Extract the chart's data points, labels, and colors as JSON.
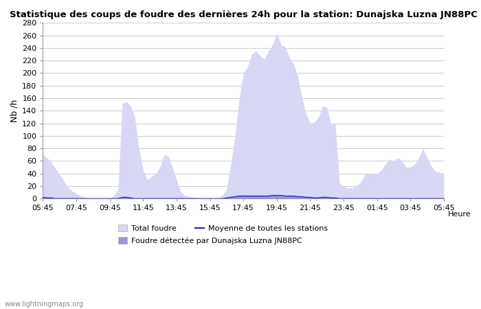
{
  "title": "Statistique des coups de foudre des dernières 24h pour la station: Dunajska Luzna JN88PC",
  "xlabel": "Heure",
  "ylabel": "Nb /h",
  "ylim": [
    0,
    280
  ],
  "yticks": [
    0,
    20,
    40,
    60,
    80,
    100,
    120,
    140,
    160,
    180,
    200,
    220,
    240,
    260,
    280
  ],
  "xtick_labels": [
    "05:45",
    "07:45",
    "09:45",
    "11:45",
    "13:45",
    "15:45",
    "17:45",
    "19:45",
    "21:45",
    "23:45",
    "01:45",
    "03:45",
    "05:45"
  ],
  "background_color": "#ffffff",
  "plot_bg_color": "#ffffff",
  "grid_color": "#cccccc",
  "fill_total_color": "#d8d8f4",
  "fill_detected_color": "#9898d8",
  "line_mean_color": "#2222cc",
  "watermark": "www.lightningmaps.org",
  "legend_total": "Total foudre",
  "legend_detected": "Foudre détectée par Dunajska Luzna JN88PC",
  "legend_mean": "Moyenne de toutes les stations",
  "n_points": 97,
  "total_foudre": [
    70,
    65,
    58,
    48,
    38,
    28,
    18,
    12,
    8,
    4,
    2,
    0,
    0,
    0,
    0,
    0,
    0,
    5,
    15,
    152,
    154,
    148,
    130,
    80,
    45,
    30,
    35,
    40,
    50,
    70,
    68,
    50,
    30,
    10,
    5,
    3,
    2,
    1,
    0,
    0,
    0,
    0,
    1,
    5,
    15,
    55,
    100,
    160,
    200,
    210,
    230,
    235,
    228,
    222,
    235,
    245,
    265,
    245,
    242,
    225,
    215,
    195,
    162,
    135,
    120,
    122,
    130,
    148,
    145,
    120,
    120,
    25,
    20,
    17,
    17,
    20,
    25,
    38,
    40,
    38,
    40,
    45,
    55,
    63,
    60,
    65,
    60,
    50,
    50,
    55,
    65,
    80,
    65,
    52,
    43,
    42,
    40
  ],
  "detected_foudre": [
    2,
    1,
    1,
    0,
    0,
    0,
    0,
    0,
    0,
    0,
    0,
    0,
    0,
    0,
    0,
    0,
    0,
    0,
    0,
    2,
    2,
    1,
    0,
    0,
    0,
    0,
    0,
    0,
    0,
    0,
    0,
    0,
    0,
    0,
    0,
    0,
    0,
    0,
    0,
    0,
    0,
    0,
    0,
    0,
    1,
    2,
    3,
    4,
    4,
    4,
    4,
    4,
    4,
    4,
    4,
    5,
    5,
    5,
    4,
    4,
    4,
    3,
    3,
    2,
    2,
    1,
    1,
    2,
    2,
    1,
    1,
    0,
    0,
    0,
    0,
    0,
    0,
    0,
    0,
    0,
    0,
    0,
    0,
    0,
    0,
    0,
    0,
    0,
    0,
    0,
    0,
    0,
    0,
    0,
    0,
    0,
    0
  ],
  "mean_line": [
    2,
    1,
    1,
    0,
    0,
    0,
    0,
    0,
    0,
    0,
    0,
    0,
    0,
    0,
    0,
    0,
    0,
    0,
    0,
    2,
    2,
    1,
    0,
    0,
    0,
    0,
    0,
    0,
    0,
    0,
    0,
    0,
    0,
    0,
    0,
    0,
    0,
    0,
    0,
    0,
    0,
    0,
    0,
    0,
    1,
    2,
    3,
    4,
    4,
    4,
    4,
    4,
    4,
    4,
    4,
    5,
    5,
    5,
    4,
    4,
    4,
    3,
    3,
    2,
    2,
    1,
    1,
    2,
    2,
    1,
    1,
    0,
    0,
    0,
    0,
    0,
    0,
    0,
    0,
    0,
    0,
    0,
    0,
    0,
    0,
    0,
    0,
    0,
    0,
    0,
    0,
    0,
    0,
    0,
    0,
    0,
    0
  ]
}
